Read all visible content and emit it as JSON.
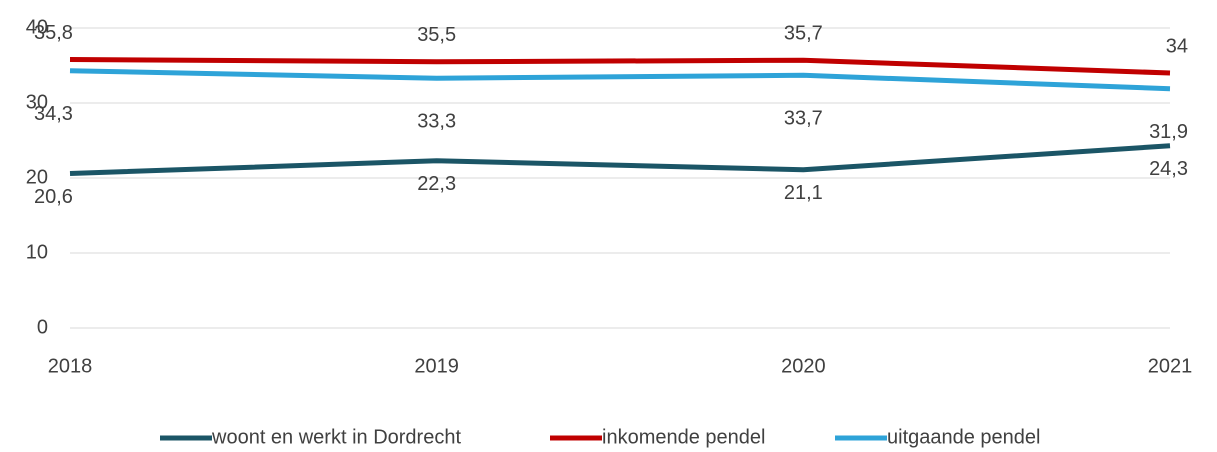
{
  "chart_data": {
    "type": "line",
    "categories": [
      "2018",
      "2019",
      "2020",
      "2021"
    ],
    "ylim": [
      0,
      40
    ],
    "yticks": [
      0,
      10,
      20,
      30,
      40
    ],
    "grid": true,
    "legend": "bottom",
    "series": [
      {
        "name": "woont en werkt in Dordrecht",
        "color": "#1b5566",
        "values": [
          20.6,
          22.3,
          21.1,
          24.3
        ],
        "value_labels": [
          "20,6",
          "22,3",
          "21,1",
          "24,3"
        ]
      },
      {
        "name": "inkomende pendel",
        "color": "#c00000",
        "values": [
          35.8,
          35.5,
          35.7,
          34
        ],
        "value_labels": [
          "35,8",
          "35,5",
          "35,7",
          "34"
        ]
      },
      {
        "name": "uitgaande pendel",
        "color": "#2ea3d8",
        "values": [
          34.3,
          33.3,
          33.7,
          31.9
        ],
        "value_labels": [
          "34,3",
          "33,3",
          "33,7",
          "31,9"
        ]
      }
    ]
  }
}
